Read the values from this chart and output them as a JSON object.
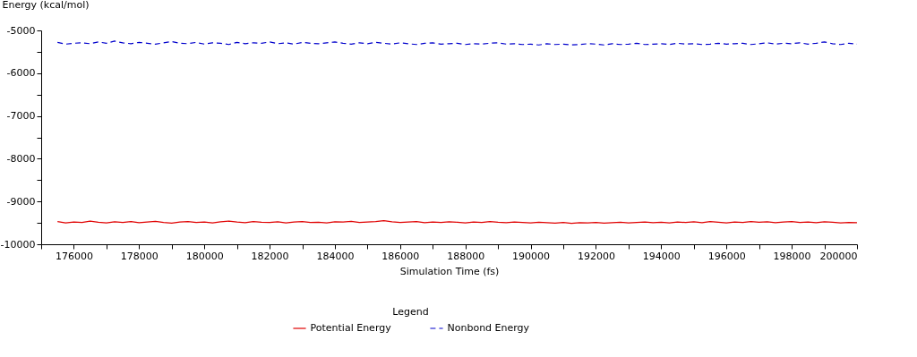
{
  "chart_data": {
    "type": "line",
    "xlabel": "Simulation Time (fs)",
    "ylabel": "Energy (kcal/mol)",
    "legend_title": "Legend",
    "legend": "bottom",
    "grid": false,
    "x": [
      175500,
      175750,
      176000,
      176250,
      176500,
      176750,
      177000,
      177250,
      177500,
      177750,
      178000,
      178250,
      178500,
      178750,
      179000,
      179250,
      179500,
      179750,
      180000,
      180250,
      180500,
      180750,
      181000,
      181250,
      181500,
      181750,
      182000,
      182250,
      182500,
      182750,
      183000,
      183250,
      183500,
      183750,
      184000,
      184250,
      184500,
      184750,
      185000,
      185250,
      185500,
      185750,
      186000,
      186250,
      186500,
      186750,
      187000,
      187250,
      187500,
      187750,
      188000,
      188250,
      188500,
      188750,
      189000,
      189250,
      189500,
      189750,
      190000,
      190250,
      190500,
      190750,
      191000,
      191250,
      191500,
      191750,
      192000,
      192250,
      192500,
      192750,
      193000,
      193250,
      193500,
      193750,
      194000,
      194250,
      194500,
      194750,
      195000,
      195250,
      195500,
      195750,
      196000,
      196250,
      196500,
      196750,
      197000,
      197250,
      197500,
      197750,
      198000,
      198250,
      198500,
      198750,
      199000,
      199250,
      199500,
      199750,
      200000
    ],
    "xlim": [
      175000,
      200000
    ],
    "xticks": [
      {
        "value": 175000,
        "label": null
      },
      176000,
      {
        "value": 177000,
        "label": null
      },
      178000,
      {
        "value": 179000,
        "label": null
      },
      180000,
      {
        "value": 181000,
        "label": null
      },
      182000,
      {
        "value": 183000,
        "label": null
      },
      184000,
      {
        "value": 185000,
        "label": null
      },
      186000,
      {
        "value": 187000,
        "label": null
      },
      188000,
      {
        "value": 189000,
        "label": null
      },
      190000,
      {
        "value": 191000,
        "label": null
      },
      192000,
      {
        "value": 193000,
        "label": null
      },
      194000,
      {
        "value": 195000,
        "label": null
      },
      196000,
      {
        "value": 197000,
        "label": null
      },
      198000,
      {
        "value": 199000,
        "label": null
      },
      200000
    ],
    "ylim": [
      -10000,
      -5000
    ],
    "yticks": [
      -10000,
      {
        "value": -9500,
        "label": null
      },
      -9000,
      {
        "value": -8500,
        "label": null
      },
      -8000,
      {
        "value": -7500,
        "label": null
      },
      -7000,
      {
        "value": -6500,
        "label": null
      },
      -6000,
      {
        "value": -5500,
        "label": null
      },
      -5000
    ],
    "series": [
      {
        "name": "Potential Energy",
        "color": "#e00000",
        "line_style": "solid",
        "values": [
          -9470,
          -9500,
          -9480,
          -9490,
          -9460,
          -9485,
          -9500,
          -9475,
          -9490,
          -9470,
          -9495,
          -9480,
          -9465,
          -9490,
          -9505,
          -9480,
          -9470,
          -9490,
          -9480,
          -9500,
          -9475,
          -9460,
          -9480,
          -9495,
          -9470,
          -9485,
          -9490,
          -9475,
          -9500,
          -9480,
          -9470,
          -9490,
          -9485,
          -9500,
          -9475,
          -9480,
          -9465,
          -9490,
          -9480,
          -9470,
          -9450,
          -9475,
          -9490,
          -9480,
          -9470,
          -9495,
          -9480,
          -9490,
          -9475,
          -9485,
          -9500,
          -9480,
          -9490,
          -9470,
          -9485,
          -9495,
          -9480,
          -9490,
          -9500,
          -9485,
          -9495,
          -9505,
          -9490,
          -9510,
          -9495,
          -9500,
          -9490,
          -9505,
          -9495,
          -9485,
          -9500,
          -9490,
          -9480,
          -9495,
          -9485,
          -9500,
          -9480,
          -9490,
          -9475,
          -9495,
          -9470,
          -9485,
          -9500,
          -9480,
          -9490,
          -9470,
          -9485,
          -9475,
          -9495,
          -9480,
          -9470,
          -9490,
          -9480,
          -9495,
          -9475,
          -9485,
          -9500,
          -9490,
          -9495
        ]
      },
      {
        "name": "Nonbond Energy",
        "color": "#0000cc",
        "line_style": "dashed",
        "values": [
          -5280,
          -5320,
          -5300,
          -5290,
          -5310,
          -5270,
          -5300,
          -5250,
          -5290,
          -5310,
          -5280,
          -5300,
          -5320,
          -5290,
          -5260,
          -5300,
          -5310,
          -5280,
          -5320,
          -5290,
          -5300,
          -5330,
          -5280,
          -5310,
          -5290,
          -5300,
          -5270,
          -5310,
          -5290,
          -5320,
          -5280,
          -5300,
          -5310,
          -5290,
          -5270,
          -5300,
          -5320,
          -5290,
          -5310,
          -5280,
          -5300,
          -5320,
          -5290,
          -5310,
          -5330,
          -5300,
          -5290,
          -5320,
          -5310,
          -5300,
          -5330,
          -5310,
          -5320,
          -5300,
          -5290,
          -5320,
          -5310,
          -5330,
          -5320,
          -5340,
          -5310,
          -5330,
          -5320,
          -5340,
          -5330,
          -5310,
          -5320,
          -5340,
          -5310,
          -5330,
          -5320,
          -5300,
          -5330,
          -5320,
          -5310,
          -5330,
          -5300,
          -5320,
          -5310,
          -5330,
          -5320,
          -5300,
          -5320,
          -5310,
          -5300,
          -5330,
          -5310,
          -5290,
          -5320,
          -5300,
          -5310,
          -5290,
          -5320,
          -5300,
          -5270,
          -5310,
          -5330,
          -5300,
          -5320
        ]
      }
    ]
  }
}
